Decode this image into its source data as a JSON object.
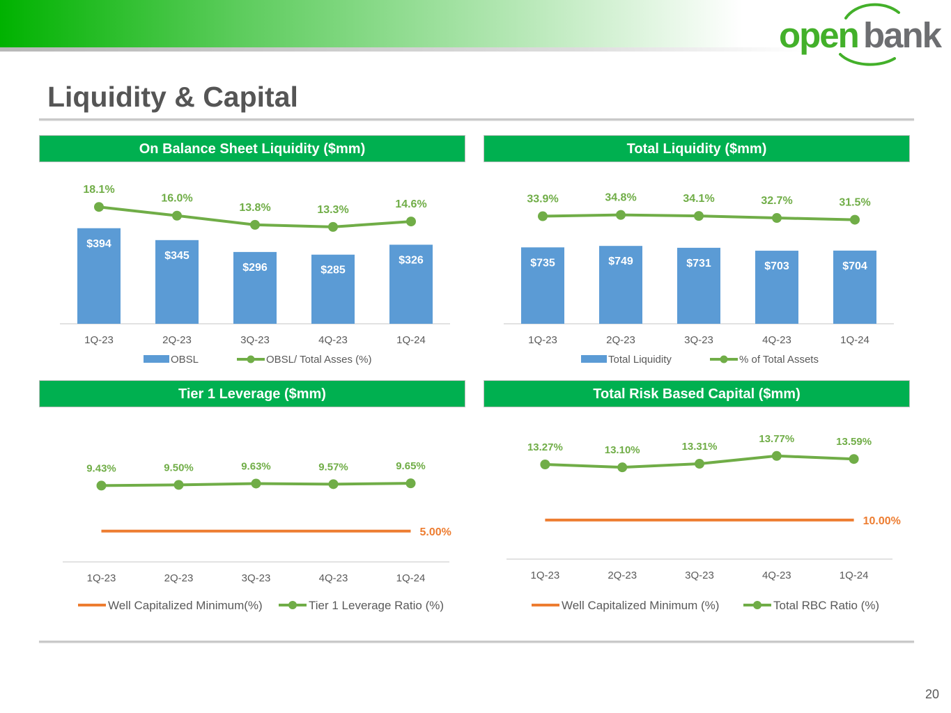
{
  "slide": {
    "title": "Liquidity & Capital",
    "page_number": "20",
    "logo_text_open": "open",
    "logo_text_bank": "bank"
  },
  "colors": {
    "green_header": "#00b050",
    "bar_blue": "#5b9bd5",
    "line_green": "#70ad47",
    "line_orange": "#ed7d31",
    "title_gray": "#555555",
    "axis_text": "#595959"
  },
  "chart_data": [
    {
      "type": "bar",
      "title": "On Balance Sheet Liquidity ($mm)",
      "categories": [
        "1Q-23",
        "2Q-23",
        "3Q-23",
        "4Q-23",
        "1Q-24"
      ],
      "series": [
        {
          "name": "OBSL",
          "kind": "bar",
          "values": [
            394,
            345,
            296,
            285,
            326
          ],
          "labels": [
            "$394",
            "$345",
            "$296",
            "$285",
            "$326"
          ]
        },
        {
          "name": "OBSL/ Total Asses (%)",
          "kind": "line",
          "values": [
            18.1,
            16.0,
            13.8,
            13.3,
            14.6
          ],
          "labels": [
            "18.1%",
            "16.0%",
            "13.8%",
            "13.3%",
            "14.6%"
          ]
        }
      ],
      "bar_ylim": [
        0,
        600
      ],
      "line_ylim": [
        -10,
        25
      ],
      "legend": [
        "OBSL",
        "OBSL/ Total Asses (%)"
      ],
      "legend_position": "bottom"
    },
    {
      "type": "bar",
      "title": "Total Liquidity ($mm)",
      "categories": [
        "1Q-23",
        "2Q-23",
        "3Q-23",
        "4Q-23",
        "1Q-24"
      ],
      "series": [
        {
          "name": "Total Liquidity",
          "kind": "bar",
          "values": [
            735,
            749,
            731,
            703,
            704
          ],
          "labels": [
            "$735",
            "$749",
            "$731",
            "$703",
            "$704"
          ]
        },
        {
          "name": "% of Total Assets",
          "kind": "line",
          "values": [
            33.9,
            34.8,
            34.1,
            32.7,
            31.5
          ],
          "labels": [
            "33.9%",
            "34.8%",
            "34.1%",
            "32.7%",
            "31.5%"
          ]
        }
      ],
      "bar_ylim": [
        0,
        1400
      ],
      "line_ylim": [
        -40,
        60
      ],
      "legend": [
        "Total Liquidity",
        "% of Total Assets"
      ],
      "legend_position": "bottom"
    },
    {
      "type": "line",
      "title": "Tier 1 Leverage ($mm)",
      "categories": [
        "1Q-23",
        "2Q-23",
        "3Q-23",
        "4Q-23",
        "1Q-24"
      ],
      "series": [
        {
          "name": "Well Capitalized Minimum(%)",
          "color": "orange",
          "values": [
            5.0,
            5.0,
            5.0,
            5.0,
            5.0
          ],
          "end_label": "5.00%"
        },
        {
          "name": "Tier 1 Leverage Ratio (%)",
          "color": "green",
          "markers": true,
          "values": [
            9.43,
            9.5,
            9.63,
            9.57,
            9.65
          ],
          "labels": [
            "9.43%",
            "9.50%",
            "9.63%",
            "9.57%",
            "9.65%"
          ]
        }
      ],
      "ylim": [
        2,
        14
      ],
      "legend": [
        "Well Capitalized Minimum(%)",
        "Tier 1 Leverage Ratio (%)"
      ],
      "legend_position": "bottom"
    },
    {
      "type": "line",
      "title": "Total Risk Based Capital ($mm)",
      "categories": [
        "1Q-23",
        "2Q-23",
        "3Q-23",
        "4Q-23",
        "1Q-24"
      ],
      "series": [
        {
          "name": "Well Capitalized Minimum (%)",
          "color": "orange",
          "values": [
            10.0,
            10.0,
            10.0,
            10.0,
            10.0
          ],
          "end_label": "10.00%"
        },
        {
          "name": "Total RBC Ratio (%)",
          "color": "green",
          "markers": true,
          "values": [
            13.27,
            13.1,
            13.31,
            13.77,
            13.59
          ],
          "labels": [
            "13.27%",
            "13.10%",
            "13.31%",
            "13.77%",
            "13.59%"
          ]
        }
      ],
      "ylim": [
        7.7,
        15.4
      ],
      "legend": [
        "Well Capitalized Minimum (%)",
        "Total RBC Ratio (%)"
      ],
      "legend_position": "bottom"
    }
  ]
}
